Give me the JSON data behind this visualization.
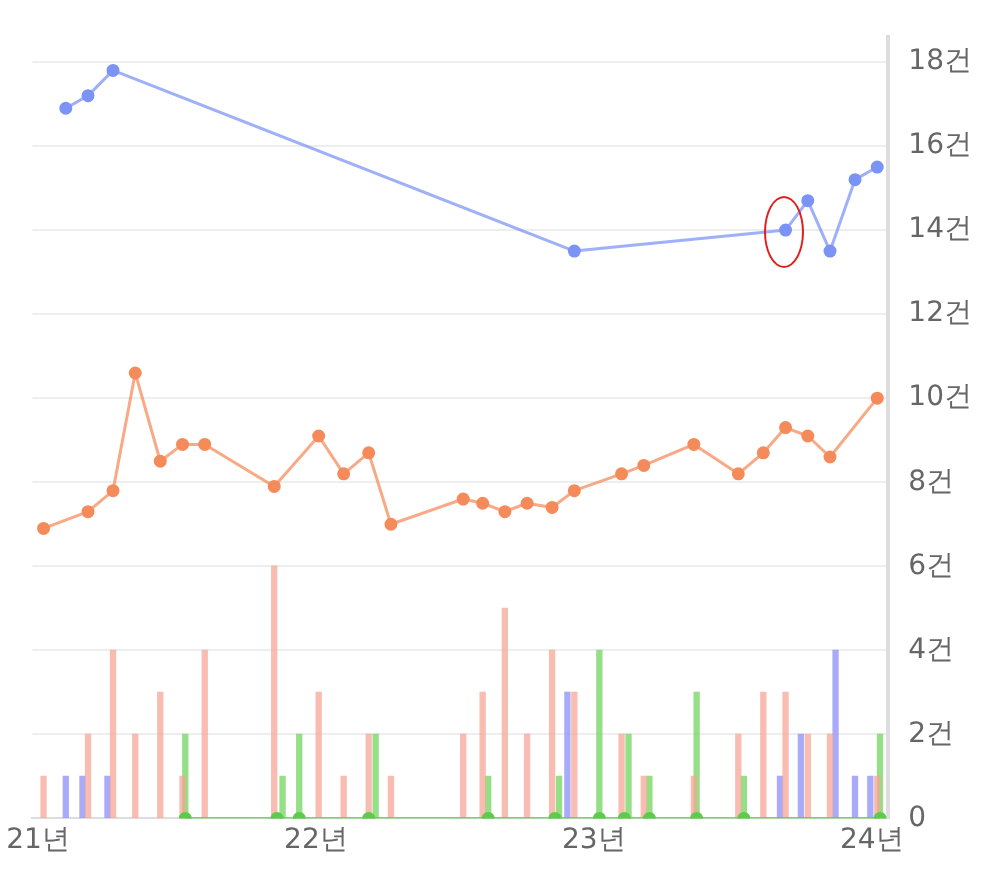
{
  "chart_data": {
    "type": "line",
    "xlim": [
      20.98,
      24.06
    ],
    "xticks": [
      {
        "value": 21,
        "label": "21년"
      },
      {
        "value": 22,
        "label": "22년"
      },
      {
        "value": 23,
        "label": "23년"
      },
      {
        "value": 24,
        "label": "24년"
      }
    ],
    "ylim": [
      0,
      18.6
    ],
    "yticks": [
      0,
      {
        "value": 2,
        "label": "2건"
      },
      {
        "value": 4,
        "label": "4건"
      },
      {
        "value": 6,
        "label": "6건"
      },
      {
        "value": 8,
        "label": "8건"
      },
      {
        "value": 10,
        "label": "10건"
      },
      {
        "value": 12,
        "label": "12건"
      },
      {
        "value": 14,
        "label": "14건"
      },
      {
        "value": 16,
        "label": "16건"
      },
      {
        "value": 18,
        "label": "18건"
      }
    ],
    "grid": "y",
    "legend": false,
    "marker": "circle",
    "line_style": "solid",
    "series": [
      {
        "color": "#7b93f5",
        "x": [
          21.1,
          21.18,
          21.27,
          22.93,
          23.69,
          23.77,
          23.85,
          23.94,
          24.02
        ],
        "values": [
          16.9,
          17.2,
          17.8,
          13.5,
          14.0,
          14.7,
          13.5,
          15.2,
          15.5
        ]
      },
      {
        "color": "#f58a5a",
        "x": [
          21.02,
          21.18,
          21.27,
          21.35,
          21.44,
          21.52,
          21.6,
          21.85,
          22.01,
          22.1,
          22.19,
          22.27,
          22.53,
          22.6,
          22.68,
          22.76,
          22.85,
          22.93,
          23.1,
          23.18,
          23.36,
          23.52,
          23.61,
          23.69,
          23.77,
          23.85,
          24.02
        ],
        "values": [
          6.9,
          7.3,
          7.8,
          10.6,
          8.5,
          8.9,
          8.9,
          7.9,
          9.1,
          8.2,
          8.7,
          7.0,
          7.6,
          7.5,
          7.3,
          7.5,
          7.4,
          7.8,
          8.2,
          8.4,
          8.9,
          8.2,
          8.7,
          9.3,
          9.1,
          8.6,
          10.0
        ]
      },
      {
        "color": "#5ccc4a",
        "x": [
          21.53,
          21.86,
          21.94,
          22.19,
          22.62,
          22.86,
          23.02,
          23.11,
          23.2,
          23.37,
          23.54,
          24.03
        ],
        "values": [
          0,
          0,
          0,
          0,
          0,
          0,
          0,
          0,
          0,
          0,
          0,
          0
        ]
      },
      {
        "type": "bar",
        "color": "#f7a494",
        "x": [
          21.02,
          21.18,
          21.27,
          21.35,
          21.44,
          21.52,
          21.6,
          21.85,
          22.01,
          22.1,
          22.19,
          22.27,
          22.53,
          22.6,
          22.68,
          22.76,
          22.85,
          22.93,
          23.1,
          23.18,
          23.36,
          23.52,
          23.61,
          23.69,
          23.77,
          23.85,
          24.02
        ],
        "values": [
          1,
          2,
          4,
          2,
          3,
          1,
          4,
          6,
          3,
          1,
          2,
          1,
          2,
          3,
          5,
          2,
          4,
          3,
          2,
          1,
          1,
          2,
          3,
          3,
          2,
          2,
          1
        ]
      },
      {
        "type": "bar",
        "color": "#8a8cf5",
        "x": [
          21.1,
          21.16,
          21.25,
          22.905,
          23.67,
          23.745,
          23.87,
          23.94,
          23.995
        ],
        "values": [
          1,
          1,
          1,
          3,
          1,
          2,
          4,
          1,
          1
        ]
      },
      {
        "type": "bar",
        "color": "#6fd45c",
        "x": [
          21.53,
          21.88,
          21.94,
          22.215,
          22.62,
          22.875,
          23.02,
          23.125,
          23.2,
          23.37,
          23.54,
          24.03
        ],
        "values": [
          2,
          1,
          2,
          2,
          1,
          1,
          4,
          2,
          1,
          3,
          1,
          2
        ]
      }
    ]
  }
}
